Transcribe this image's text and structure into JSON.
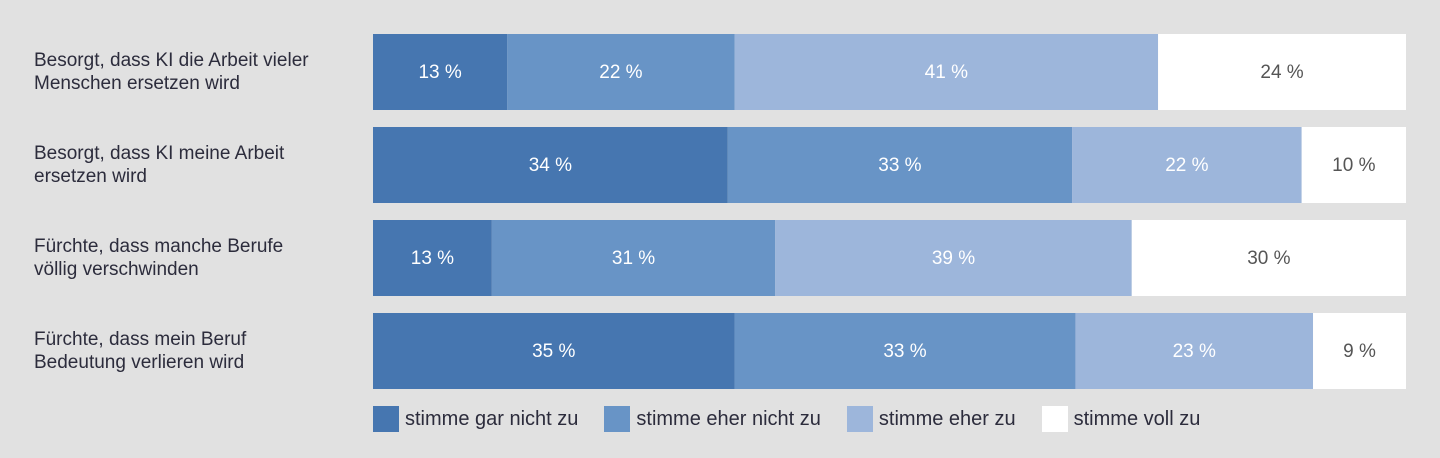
{
  "chart_data": {
    "type": "stacked_bar_horizontal",
    "categories": [
      "Besorgt, dass KI die Arbeit vieler Menschen ersetzen wird",
      "Besorgt, dass KI meine Arbeit ersetzen wird",
      "Fürchte, dass manche Berufe völlig verschwinden",
      "Fürchte, dass mein Beruf Bedeutung verlieren wird"
    ],
    "series": [
      {
        "name": "stimme gar nicht zu",
        "color": "#4676b0",
        "values": [
          13,
          34,
          13,
          35
        ],
        "value_labels": [
          "13 %",
          "34 %",
          "13 %",
          "35 %"
        ]
      },
      {
        "name": "stimme eher nicht zu",
        "color": "#6894c6",
        "values": [
          22,
          33,
          31,
          33
        ],
        "value_labels": [
          "22 %",
          "33 %",
          "31 %",
          "33 %"
        ]
      },
      {
        "name": "stimme eher zu",
        "color": "#9db6db",
        "values": [
          41,
          22,
          39,
          23
        ],
        "value_labels": [
          "41 %",
          "22 %",
          "39 %",
          "23 %"
        ]
      },
      {
        "name": "stimme voll zu",
        "color": "#ffffff",
        "values": [
          24,
          10,
          30,
          9
        ],
        "value_labels": [
          "24 %",
          "10 %",
          "30 %",
          "9 %"
        ]
      }
    ]
  }
}
